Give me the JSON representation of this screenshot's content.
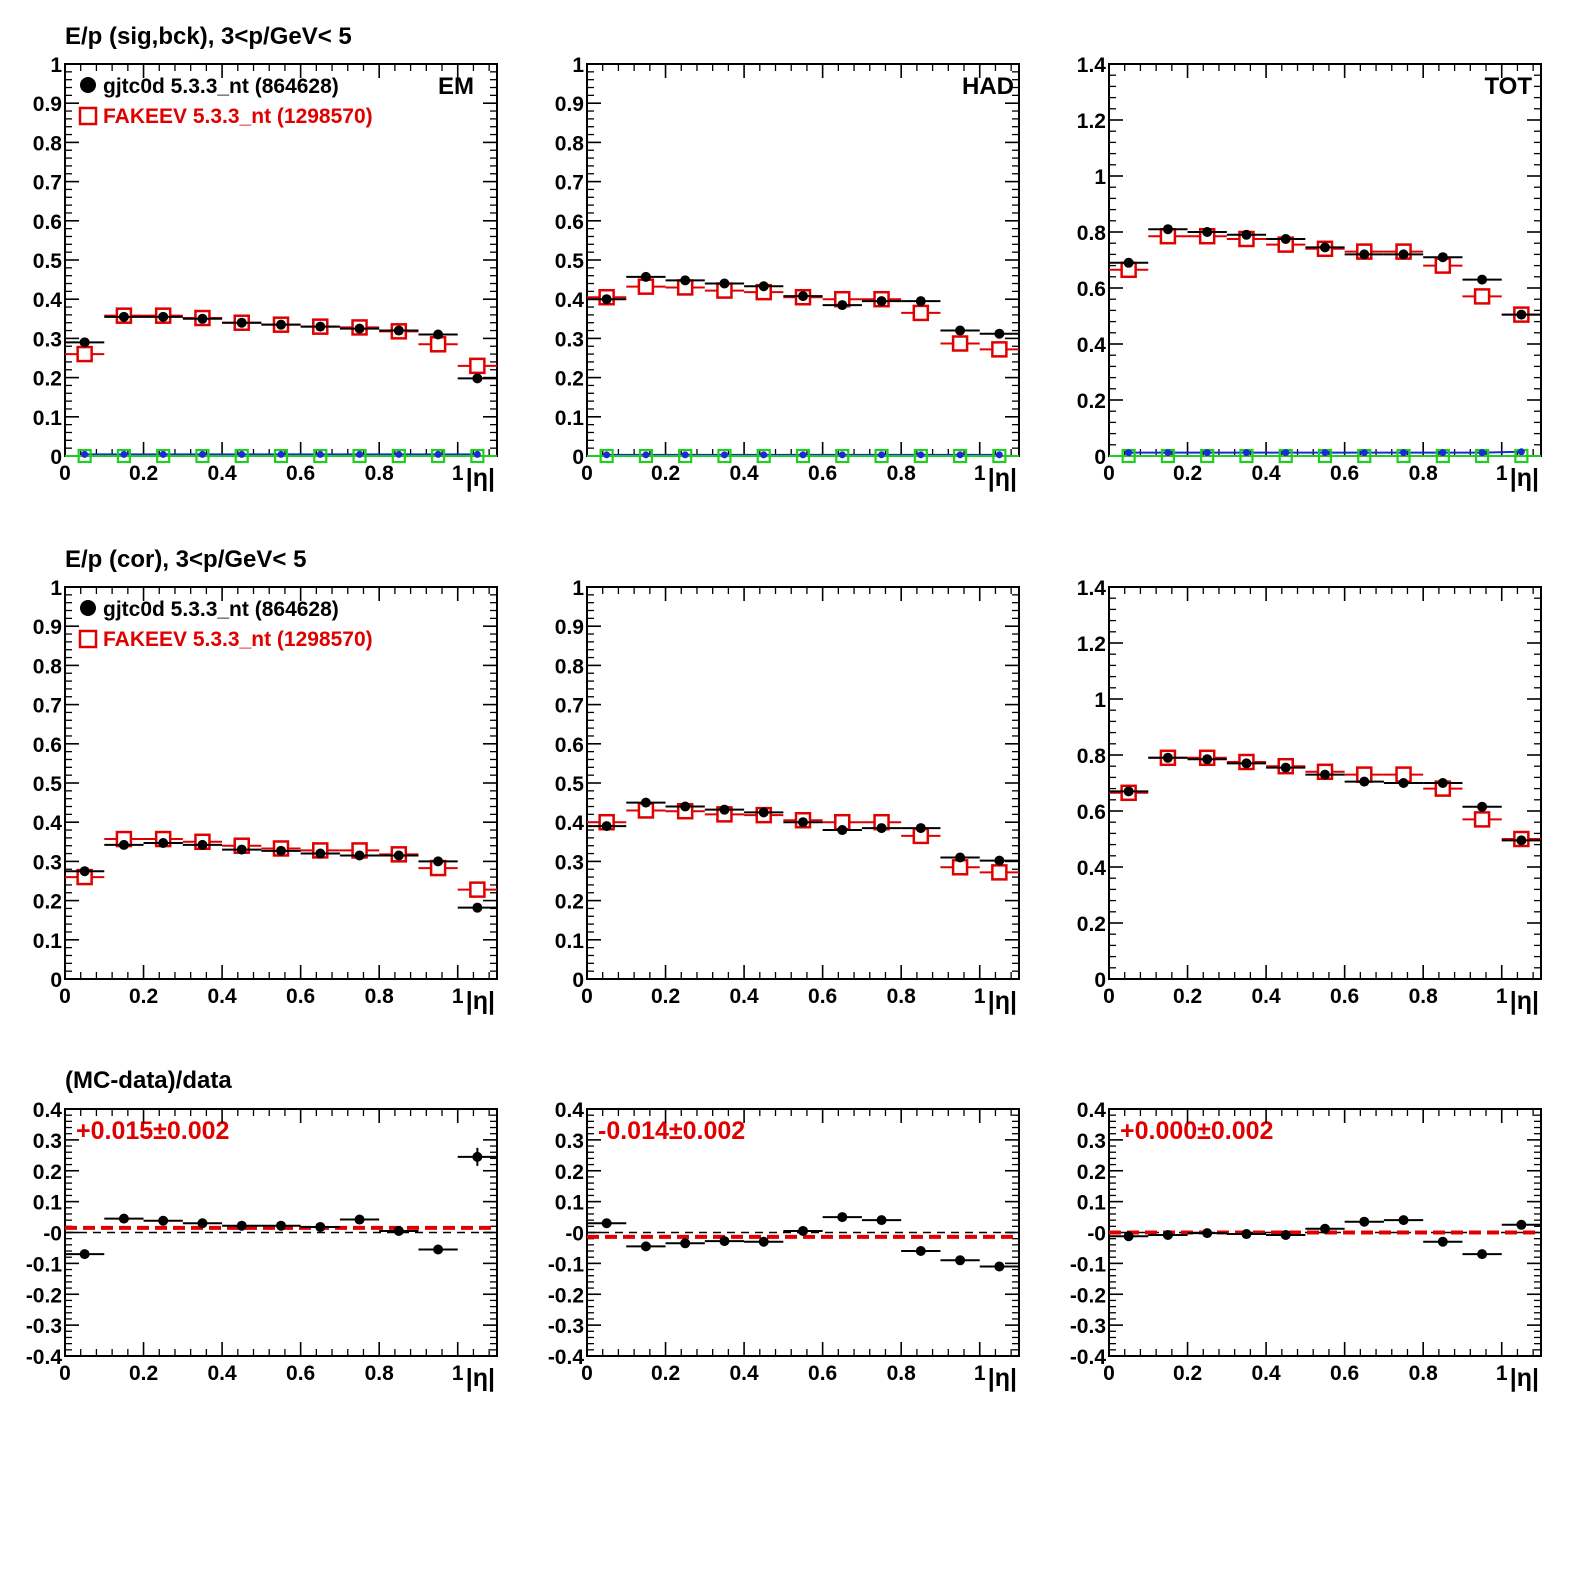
{
  "rows": [
    {
      "title": "E/p (sig,bck),  3<p/GeV< 5",
      "panels": [
        {
          "ylim": [
            0,
            1
          ],
          "yticks": [
            0,
            0.1,
            0.2,
            0.3,
            0.4,
            0.5,
            0.6,
            0.7,
            0.8,
            0.9,
            1
          ],
          "ytick_labels": [
            "0",
            "0.1",
            "0.2",
            "0.3",
            "0.4",
            "0.5",
            "0.6",
            "0.7",
            "0.8",
            "0.9",
            "1"
          ],
          "corner_label": "EM",
          "legend": [
            {
              "marker": "filled-circle",
              "text": "gjtc0d 5.3.3_nt (864628)",
              "color": "#000000"
            },
            {
              "marker": "open-square",
              "text": "FAKEEV 5.3.3_nt (1298570)",
              "color": "#e00000"
            }
          ]
        },
        {
          "ylim": [
            0,
            1
          ],
          "yticks": [
            0,
            0.1,
            0.2,
            0.3,
            0.4,
            0.5,
            0.6,
            0.7,
            0.8,
            0.9,
            1
          ],
          "ytick_labels": [
            "0",
            "0.1",
            "0.2",
            "0.3",
            "0.4",
            "0.5",
            "0.6",
            "0.7",
            "0.8",
            "0.9",
            "1"
          ],
          "corner_label": "HAD"
        },
        {
          "ylim": [
            0,
            1.4
          ],
          "yticks": [
            0,
            0.2,
            0.4,
            0.6,
            0.8,
            1,
            1.2,
            1.4
          ],
          "ytick_labels": [
            "0",
            "0.2",
            "0.4",
            "0.6",
            "0.8",
            "1",
            "1.2",
            "1.4"
          ],
          "corner_label": "TOT"
        }
      ]
    },
    {
      "title": "E/p (cor),  3<p/GeV< 5",
      "panels": [
        {
          "ylim": [
            0,
            1
          ],
          "yticks": [
            0,
            0.1,
            0.2,
            0.3,
            0.4,
            0.5,
            0.6,
            0.7,
            0.8,
            0.9,
            1
          ],
          "ytick_labels": [
            "0",
            "0.1",
            "0.2",
            "0.3",
            "0.4",
            "0.5",
            "0.6",
            "0.7",
            "0.8",
            "0.9",
            "1"
          ],
          "legend": [
            {
              "marker": "filled-circle",
              "text": "gjtc0d 5.3.3_nt (864628)",
              "color": "#000000"
            },
            {
              "marker": "open-square",
              "text": "FAKEEV 5.3.3_nt (1298570)",
              "color": "#e00000"
            }
          ]
        },
        {
          "ylim": [
            0,
            1
          ],
          "yticks": [
            0,
            0.1,
            0.2,
            0.3,
            0.4,
            0.5,
            0.6,
            0.7,
            0.8,
            0.9,
            1
          ],
          "ytick_labels": [
            "0",
            "0.1",
            "0.2",
            "0.3",
            "0.4",
            "0.5",
            "0.6",
            "0.7",
            "0.8",
            "0.9",
            "1"
          ]
        },
        {
          "ylim": [
            0,
            1.4
          ],
          "yticks": [
            0,
            0.2,
            0.4,
            0.6,
            0.8,
            1,
            1.2,
            1.4
          ],
          "ytick_labels": [
            "0",
            "0.2",
            "0.4",
            "0.6",
            "0.8",
            "1",
            "1.2",
            "1.4"
          ]
        }
      ]
    },
    {
      "title": "(MC-data)/data",
      "panels": [
        {
          "ylim": [
            -0.4,
            0.4
          ],
          "yticks": [
            -0.4,
            -0.3,
            -0.2,
            -0.1,
            0,
            0.1,
            0.2,
            0.3,
            0.4
          ],
          "ytick_labels": [
            "-0.4",
            "-0.3",
            "-0.2",
            "-0.1",
            "-0",
            "0.1",
            "0.2",
            "0.3",
            "0.4"
          ],
          "fit_label": "+0.015±0.002"
        },
        {
          "ylim": [
            -0.4,
            0.4
          ],
          "yticks": [
            -0.4,
            -0.3,
            -0.2,
            -0.1,
            0,
            0.1,
            0.2,
            0.3,
            0.4
          ],
          "ytick_labels": [
            "-0.4",
            "-0.3",
            "-0.2",
            "-0.1",
            "-0",
            "0.1",
            "0.2",
            "0.3",
            "0.4"
          ],
          "fit_label": "-0.014±0.002"
        },
        {
          "ylim": [
            -0.4,
            0.4
          ],
          "yticks": [
            -0.4,
            -0.3,
            -0.2,
            -0.1,
            0,
            0.1,
            0.2,
            0.3,
            0.4
          ],
          "ytick_labels": [
            "-0.4",
            "-0.3",
            "-0.2",
            "-0.1",
            "-0",
            "0.1",
            "0.2",
            "0.3",
            "0.4"
          ],
          "fit_label": "+0.000±0.002"
        }
      ]
    }
  ],
  "xaxis": {
    "xlim": [
      0,
      1.1
    ],
    "xticks": [
      0,
      0.2,
      0.4,
      0.6,
      0.8,
      1
    ],
    "xtick_labels": [
      "0",
      "0.2",
      "0.4",
      "0.6",
      "0.8",
      "1"
    ],
    "xlabel": "|η|"
  },
  "colors": {
    "data": "#000000",
    "mc": "#e00000",
    "bkg_green": "#22cc22",
    "bkg_blue": "#1a2bd6"
  },
  "chart_data": [
    {
      "type": "scatter",
      "panel": "row1-EM",
      "xlabel": "|η|",
      "ylim": [
        0,
        1
      ],
      "x": [
        0.05,
        0.15,
        0.25,
        0.35,
        0.45,
        0.55,
        0.65,
        0.75,
        0.85,
        0.95,
        1.05
      ],
      "series": [
        {
          "name": "gjtc0d 5.3.3_nt (864628)",
          "values": [
            0.29,
            0.355,
            0.355,
            0.35,
            0.34,
            0.335,
            0.33,
            0.325,
            0.32,
            0.31,
            0.198
          ]
        },
        {
          "name": "FAKEEV 5.3.3_nt (1298570)",
          "values": [
            0.26,
            0.358,
            0.358,
            0.352,
            0.34,
            0.335,
            0.33,
            0.328,
            0.318,
            0.285,
            0.23
          ]
        },
        {
          "values": [
            0,
            0,
            0,
            0,
            0,
            0,
            0,
            0,
            0,
            0,
            0
          ]
        },
        {
          "values": [
            0.004,
            0.004,
            0.004,
            0.004,
            0.004,
            0.004,
            0.004,
            0.004,
            0.004,
            0.004,
            0.004
          ]
        }
      ]
    },
    {
      "type": "scatter",
      "panel": "row1-HAD",
      "xlabel": "|η|",
      "ylim": [
        0,
        1
      ],
      "x": [
        0.05,
        0.15,
        0.25,
        0.35,
        0.45,
        0.55,
        0.65,
        0.75,
        0.85,
        0.95,
        1.05
      ],
      "series": [
        {
          "name": "gjtc0d 5.3.3_nt (864628)",
          "values": [
            0.4,
            0.457,
            0.448,
            0.44,
            0.433,
            0.408,
            0.385,
            0.395,
            0.395,
            0.32,
            0.312
          ]
        },
        {
          "name": "FAKEEV 5.3.3_nt (1298570)",
          "values": [
            0.405,
            0.432,
            0.43,
            0.422,
            0.418,
            0.405,
            0.4,
            0.4,
            0.365,
            0.287,
            0.272
          ]
        },
        {
          "values": [
            0,
            0,
            0,
            0,
            0,
            0,
            0,
            0,
            0,
            0,
            0
          ]
        },
        {
          "values": [
            0.003,
            0.003,
            0.003,
            0.003,
            0.003,
            0.003,
            0.003,
            0.003,
            0.003,
            0.003,
            0.003
          ]
        }
      ]
    },
    {
      "type": "scatter",
      "panel": "row1-TOT",
      "xlabel": "|η|",
      "ylim": [
        0,
        1.4
      ],
      "x": [
        0.05,
        0.15,
        0.25,
        0.35,
        0.45,
        0.55,
        0.65,
        0.75,
        0.85,
        0.95,
        1.05
      ],
      "series": [
        {
          "name": "gjtc0d 5.3.3_nt (864628)",
          "values": [
            0.69,
            0.81,
            0.8,
            0.79,
            0.775,
            0.745,
            0.72,
            0.72,
            0.71,
            0.63,
            0.505
          ]
        },
        {
          "name": "FAKEEV 5.3.3_nt (1298570)",
          "values": [
            0.665,
            0.785,
            0.785,
            0.775,
            0.755,
            0.74,
            0.73,
            0.73,
            0.68,
            0.57,
            0.505
          ]
        },
        {
          "values": [
            0,
            0,
            0,
            0,
            0,
            0,
            0,
            0,
            0,
            0,
            0
          ]
        },
        {
          "values": [
            0.012,
            0.012,
            0.012,
            0.012,
            0.012,
            0.012,
            0.012,
            0.012,
            0.012,
            0.012,
            0.015
          ]
        }
      ]
    },
    {
      "type": "scatter",
      "panel": "row2-EM",
      "xlabel": "|η|",
      "ylim": [
        0,
        1
      ],
      "x": [
        0.05,
        0.15,
        0.25,
        0.35,
        0.45,
        0.55,
        0.65,
        0.75,
        0.85,
        0.95,
        1.05
      ],
      "series": [
        {
          "name": "gjtc0d 5.3.3_nt (864628)",
          "values": [
            0.275,
            0.342,
            0.347,
            0.342,
            0.33,
            0.327,
            0.32,
            0.315,
            0.315,
            0.3,
            0.182
          ]
        },
        {
          "name": "FAKEEV 5.3.3_nt (1298570)",
          "values": [
            0.26,
            0.357,
            0.357,
            0.35,
            0.34,
            0.333,
            0.328,
            0.328,
            0.318,
            0.283,
            0.228
          ]
        }
      ]
    },
    {
      "type": "scatter",
      "panel": "row2-HAD",
      "xlabel": "|η|",
      "ylim": [
        0,
        1
      ],
      "x": [
        0.05,
        0.15,
        0.25,
        0.35,
        0.45,
        0.55,
        0.65,
        0.75,
        0.85,
        0.95,
        1.05
      ],
      "series": [
        {
          "name": "gjtc0d 5.3.3_nt (864628)",
          "values": [
            0.39,
            0.45,
            0.44,
            0.432,
            0.425,
            0.4,
            0.38,
            0.385,
            0.385,
            0.31,
            0.302
          ]
        },
        {
          "name": "FAKEEV 5.3.3_nt (1298570)",
          "values": [
            0.4,
            0.43,
            0.428,
            0.42,
            0.418,
            0.405,
            0.4,
            0.4,
            0.365,
            0.285,
            0.272
          ]
        }
      ]
    },
    {
      "type": "scatter",
      "panel": "row2-TOT",
      "xlabel": "|η|",
      "ylim": [
        0,
        1.4
      ],
      "x": [
        0.05,
        0.15,
        0.25,
        0.35,
        0.45,
        0.55,
        0.65,
        0.75,
        0.85,
        0.95,
        1.05
      ],
      "series": [
        {
          "name": "gjtc0d 5.3.3_nt (864628)",
          "values": [
            0.67,
            0.79,
            0.785,
            0.77,
            0.755,
            0.73,
            0.705,
            0.7,
            0.7,
            0.615,
            0.495
          ]
        },
        {
          "name": "FAKEEV 5.3.3_nt (1298570)",
          "values": [
            0.665,
            0.79,
            0.79,
            0.775,
            0.76,
            0.74,
            0.73,
            0.73,
            0.68,
            0.57,
            0.5
          ]
        }
      ]
    },
    {
      "type": "scatter",
      "panel": "row3-EM",
      "xlabel": "|η|",
      "ylim": [
        -0.4,
        0.4
      ],
      "x": [
        0.05,
        0.15,
        0.25,
        0.35,
        0.45,
        0.55,
        0.65,
        0.75,
        0.85,
        0.95,
        1.05
      ],
      "series": [
        {
          "values": [
            -0.07,
            0.045,
            0.038,
            0.03,
            0.022,
            0.022,
            0.018,
            0.042,
            0.005,
            -0.055,
            0.245
          ]
        }
      ],
      "fit": 0.015,
      "fit_label": "+0.015±0.002"
    },
    {
      "type": "scatter",
      "panel": "row3-HAD",
      "xlabel": "|η|",
      "ylim": [
        -0.4,
        0.4
      ],
      "x": [
        0.05,
        0.15,
        0.25,
        0.35,
        0.45,
        0.55,
        0.65,
        0.75,
        0.85,
        0.95,
        1.05
      ],
      "series": [
        {
          "values": [
            0.03,
            -0.045,
            -0.035,
            -0.028,
            -0.03,
            0.005,
            0.05,
            0.04,
            -0.06,
            -0.09,
            -0.11
          ]
        }
      ],
      "fit": -0.014,
      "fit_label": "-0.014±0.002"
    },
    {
      "type": "scatter",
      "panel": "row3-TOT",
      "xlabel": "|η|",
      "ylim": [
        -0.4,
        0.4
      ],
      "x": [
        0.05,
        0.15,
        0.25,
        0.35,
        0.45,
        0.55,
        0.65,
        0.75,
        0.85,
        0.95,
        1.05
      ],
      "series": [
        {
          "values": [
            -0.012,
            -0.008,
            -0.002,
            -0.005,
            -0.008,
            0.012,
            0.035,
            0.04,
            -0.03,
            -0.07,
            0.025
          ]
        }
      ],
      "fit": 0.0,
      "fit_label": "+0.000±0.002"
    }
  ]
}
